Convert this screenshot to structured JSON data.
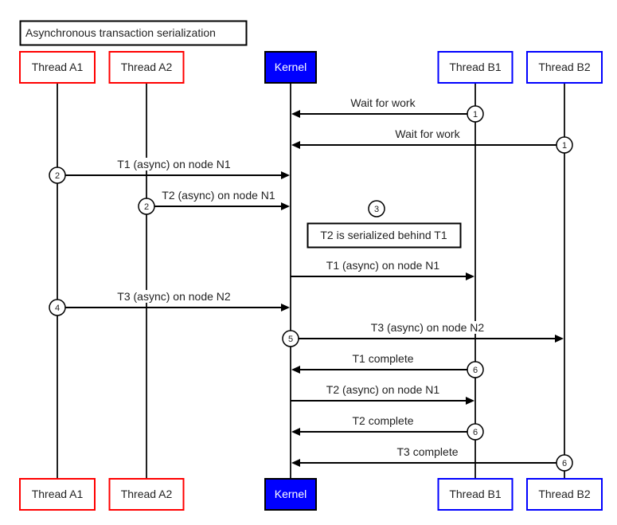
{
  "title": "Asynchronous transaction serialization",
  "participants": [
    {
      "id": "A1",
      "label": "Thread A1",
      "border": "#ff0000",
      "fill": "#ffffff",
      "text": "#222222"
    },
    {
      "id": "A2",
      "label": "Thread A2",
      "border": "#ff0000",
      "fill": "#ffffff",
      "text": "#222222"
    },
    {
      "id": "K",
      "label": "Kernel",
      "border": "#000000",
      "fill": "#0000ff",
      "text": "#ffffff"
    },
    {
      "id": "B1",
      "label": "Thread B1",
      "border": "#0000ff",
      "fill": "#ffffff",
      "text": "#222222"
    },
    {
      "id": "B2",
      "label": "Thread B2",
      "border": "#0000ff",
      "fill": "#ffffff",
      "text": "#222222"
    }
  ],
  "messages": [
    {
      "from": "B1",
      "to": "K",
      "label": "Wait for work",
      "step": "1"
    },
    {
      "from": "B2",
      "to": "K",
      "label": "Wait for work",
      "step": "1"
    },
    {
      "from": "A1",
      "to": "K",
      "label": "T1 (async) on node N1",
      "step": "2"
    },
    {
      "from": "A2",
      "to": "K",
      "label": "T2 (async) on node N1",
      "step": "2"
    },
    {
      "note": "T2 is serialized behind T1",
      "step": "3"
    },
    {
      "from": "K",
      "to": "B1",
      "label": "T1 (async) on node N1",
      "step": ""
    },
    {
      "from": "A1",
      "to": "K",
      "label": "T3 (async) on node N2",
      "step": "4"
    },
    {
      "from": "K",
      "to": "B2",
      "label": "T3 (async) on node N2",
      "step": "5"
    },
    {
      "from": "B1",
      "to": "K",
      "label": "T1 complete",
      "step": "6"
    },
    {
      "from": "K",
      "to": "B1",
      "label": "T2 (async) on node N1",
      "step": ""
    },
    {
      "from": "B1",
      "to": "K",
      "label": "T2 complete",
      "step": "6"
    },
    {
      "from": "B2",
      "to": "K",
      "label": "T3 complete",
      "step": "6"
    }
  ]
}
